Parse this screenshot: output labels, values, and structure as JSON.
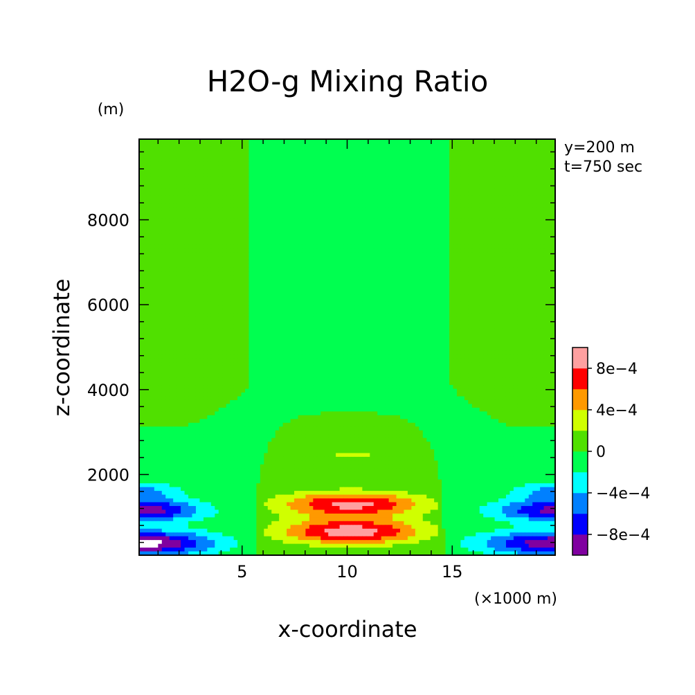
{
  "chart_data": {
    "type": "contour",
    "title": "H2O-g Mixing Ratio",
    "xlabel": "x-coordinate",
    "ylabel": "z-coordinate",
    "x_unit": "(×1000 m)",
    "y_unit": "(m)",
    "annotations": [
      "y=200 m",
      "t=750 sec"
    ],
    "xlim": [
      0.1,
      19.9
    ],
    "ylim": [
      100,
      9900
    ],
    "x_ticks": [
      5,
      10,
      15
    ],
    "y_ticks": [
      2000,
      4000,
      6000,
      8000
    ],
    "x_tick_labels": [
      "5",
      "10",
      "15"
    ],
    "y_tick_labels": [
      "2000",
      "4000",
      "6000",
      "8000"
    ],
    "legend": {
      "placement": "right",
      "levels": [
        -0.001,
        -0.0008,
        -0.0006,
        -0.0004,
        -0.0002,
        0,
        0.0002,
        0.0004,
        0.0006,
        0.0008,
        0.001
      ],
      "colors": [
        "#8000a0",
        "#0000ff",
        "#0080ff",
        "#00ffff",
        "#00ff50",
        "#50e000",
        "#d0ff00",
        "#ff9900",
        "#ff0000",
        "#ffa0a0"
      ],
      "labels": [
        {
          "value": -0.0008,
          "text": "−8e−4"
        },
        {
          "value": -0.0004,
          "text": "−4e−4"
        },
        {
          "value": 0,
          "text": "0"
        },
        {
          "value": 0.0004,
          "text": "4e−4"
        },
        {
          "value": 0.0008,
          "text": "8e−4"
        }
      ]
    },
    "field_features": {
      "background_band": {
        "value": 0.0001
      },
      "central_column": {
        "value": -0.0001,
        "x_range": [
          5.4,
          14.9
        ]
      },
      "central_dome": {
        "value": 0.0001,
        "x_range": [
          5.6,
          14.6
        ],
        "z_top": 3450
      },
      "positive_lobes": [
        {
          "x": 10.2,
          "z": 650,
          "peak": 0.00092
        },
        {
          "x": 10.2,
          "z": 1300,
          "peak": 0.00086
        },
        {
          "x": 10.2,
          "z": 2450,
          "peak": 0.0003
        }
      ],
      "negative_lobes": [
        {
          "x": 0.1,
          "z": 380,
          "peak": -0.0011
        },
        {
          "x": 0.1,
          "z": 1150,
          "peak": -0.00095
        },
        {
          "x": 19.9,
          "z": 380,
          "peak": -0.00095
        },
        {
          "x": 19.9,
          "z": 1150,
          "peak": -0.00085
        }
      ]
    }
  }
}
